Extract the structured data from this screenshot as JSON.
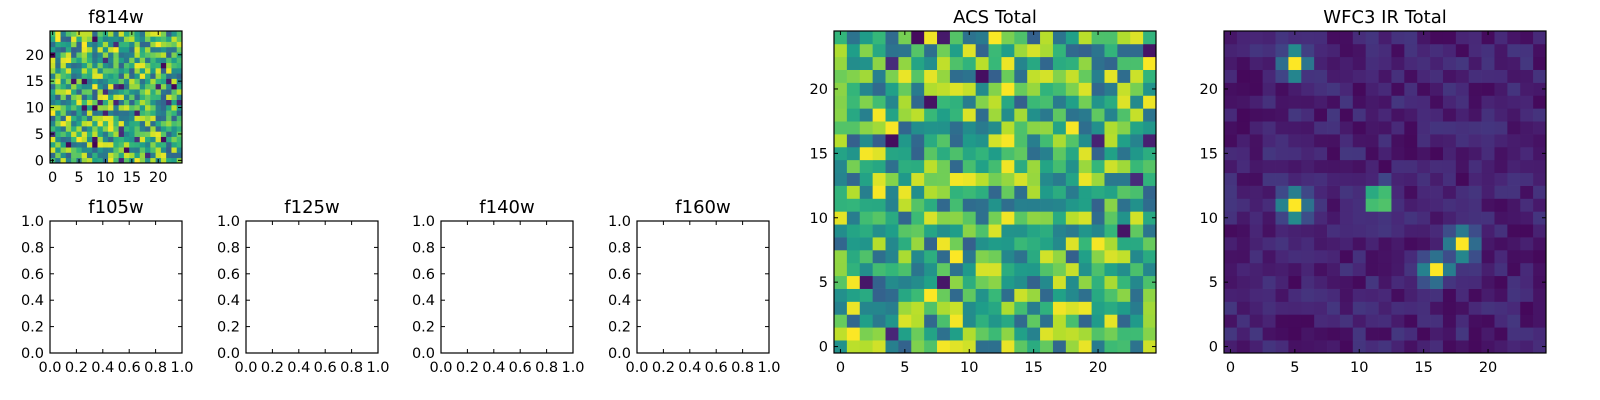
{
  "chart_data": [
    {
      "type": "heatmap",
      "title": "f814w",
      "grid_shape": [
        25,
        25
      ],
      "colormap": "viridis",
      "seed": 814,
      "pattern": "uniform-noise",
      "xticks": [
        0,
        5,
        10,
        15,
        20
      ],
      "yticks": [
        0,
        5,
        10,
        15,
        20
      ],
      "xlim": [
        -0.5,
        24.5
      ],
      "ylim": [
        -0.5,
        24.5
      ]
    },
    {
      "type": "heatmap",
      "title": "f105w",
      "empty": true,
      "xticks": [
        "0.0",
        "0.2",
        "0.4",
        "0.6",
        "0.8",
        "1.0"
      ],
      "yticks": [
        "0.0",
        "0.2",
        "0.4",
        "0.6",
        "0.8",
        "1.0"
      ],
      "xlim": [
        0,
        1
      ],
      "ylim": [
        0,
        1
      ]
    },
    {
      "type": "heatmap",
      "title": "f125w",
      "empty": true,
      "xticks": [
        "0.0",
        "0.2",
        "0.4",
        "0.6",
        "0.8",
        "1.0"
      ],
      "yticks": [
        "0.0",
        "0.2",
        "0.4",
        "0.6",
        "0.8",
        "1.0"
      ],
      "xlim": [
        0,
        1
      ],
      "ylim": [
        0,
        1
      ]
    },
    {
      "type": "heatmap",
      "title": "f140w",
      "empty": true,
      "xticks": [
        "0.0",
        "0.2",
        "0.4",
        "0.6",
        "0.8",
        "1.0"
      ],
      "yticks": [
        "0.0",
        "0.2",
        "0.4",
        "0.6",
        "0.8",
        "1.0"
      ],
      "xlim": [
        0,
        1
      ],
      "ylim": [
        0,
        1
      ]
    },
    {
      "type": "heatmap",
      "title": "f160w",
      "empty": true,
      "xticks": [
        "0.0",
        "0.2",
        "0.4",
        "0.6",
        "0.8",
        "1.0"
      ],
      "yticks": [
        "0.0",
        "0.2",
        "0.4",
        "0.6",
        "0.8",
        "1.0"
      ],
      "xlim": [
        0,
        1
      ],
      "ylim": [
        0,
        1
      ]
    },
    {
      "type": "heatmap",
      "title": "ACS Total",
      "grid_shape": [
        25,
        25
      ],
      "colormap": "viridis",
      "seed": 2718,
      "pattern": "uniform-noise",
      "xticks": [
        0,
        5,
        10,
        15,
        20
      ],
      "yticks": [
        0,
        5,
        10,
        15,
        20
      ],
      "xlim": [
        -0.5,
        24.5
      ],
      "ylim": [
        -0.5,
        24.5
      ]
    },
    {
      "type": "heatmap",
      "title": "WFC3 IR Total",
      "grid_shape": [
        25,
        25
      ],
      "colormap": "viridis",
      "seed": 3141,
      "pattern": "low-noise-with-sources",
      "sources": [
        {
          "x": 5,
          "y": 22,
          "amplitude": 1.0
        },
        {
          "x": 5,
          "y": 11,
          "amplitude": 1.0
        },
        {
          "x": 11.5,
          "y": 11.5,
          "amplitude": 1.0
        },
        {
          "x": 18,
          "y": 8,
          "amplitude": 0.95
        },
        {
          "x": 16,
          "y": 6,
          "amplitude": 0.95
        }
      ],
      "xticks": [
        0,
        5,
        10,
        15,
        20
      ],
      "yticks": [
        0,
        5,
        10,
        15,
        20
      ],
      "xlim": [
        -0.5,
        24.5
      ],
      "ylim": [
        -0.5,
        24.5
      ]
    }
  ]
}
